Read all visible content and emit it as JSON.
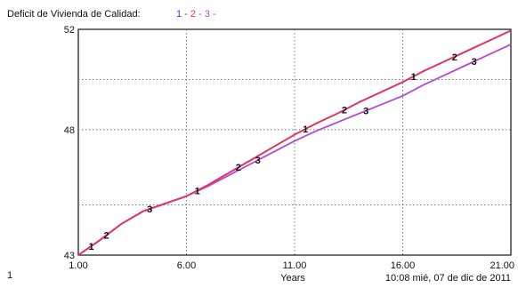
{
  "chart_data": {
    "type": "line",
    "legend_title": "Deficit de  Vivienda de Calidad:",
    "legend_entries": [
      "1",
      "2",
      "3"
    ],
    "legend_separators": [
      " - ",
      " - ",
      " -"
    ],
    "series_colors": [
      "#3b3bd4",
      "#ee3355",
      "#b44ad4"
    ],
    "x_ticks": [
      "1.00",
      "6.00",
      "11.00",
      "16.00",
      "21.00"
    ],
    "x_range": [
      1,
      21
    ],
    "y_ticks": [
      "52",
      "48",
      "43"
    ],
    "y_range": [
      43,
      52
    ],
    "y_grid": [
      43,
      45,
      48,
      50,
      52
    ],
    "x_axis_label": "Years",
    "page_label": "1",
    "timestamp": "10:08   mié, 07 de dic de 2011",
    "grid": true,
    "series": [
      {
        "label": "1",
        "x": [
          1,
          2,
          3,
          4,
          5,
          6,
          7,
          8,
          9,
          10,
          11,
          12,
          13,
          14,
          15,
          16,
          17,
          18,
          19,
          20,
          21
        ],
        "values": [
          43.0,
          43.6,
          44.25,
          44.75,
          45.05,
          45.35,
          45.8,
          46.3,
          46.8,
          47.3,
          47.8,
          48.25,
          48.65,
          49.1,
          49.5,
          49.9,
          50.35,
          50.75,
          51.15,
          51.55,
          51.95
        ],
        "marker_x": [
          1.6,
          6.5,
          11.5,
          16.5
        ]
      },
      {
        "label": "2",
        "x": [
          1,
          2,
          3,
          4,
          5,
          6,
          7,
          8,
          9,
          10,
          11,
          12,
          13,
          14,
          15,
          16,
          17,
          18,
          19,
          20,
          21
        ],
        "values": [
          43.0,
          43.6,
          44.25,
          44.75,
          45.05,
          45.35,
          45.8,
          46.3,
          46.8,
          47.3,
          47.8,
          48.25,
          48.65,
          49.1,
          49.5,
          49.9,
          50.35,
          50.75,
          51.15,
          51.55,
          51.95
        ],
        "marker_x": [
          2.3,
          8.4,
          13.3,
          18.4
        ]
      },
      {
        "label": "3",
        "x": [
          1,
          2,
          3,
          4,
          5,
          6,
          7,
          8,
          9,
          10,
          11,
          12,
          13,
          14,
          15,
          16,
          17,
          18,
          19,
          20,
          21
        ],
        "values": [
          43.0,
          43.6,
          44.25,
          44.75,
          45.05,
          45.35,
          45.75,
          46.2,
          46.65,
          47.1,
          47.55,
          47.95,
          48.3,
          48.65,
          49.0,
          49.35,
          49.8,
          50.2,
          50.6,
          51.0,
          51.4
        ],
        "marker_x": [
          4.3,
          9.3,
          14.3,
          19.3
        ]
      }
    ]
  }
}
